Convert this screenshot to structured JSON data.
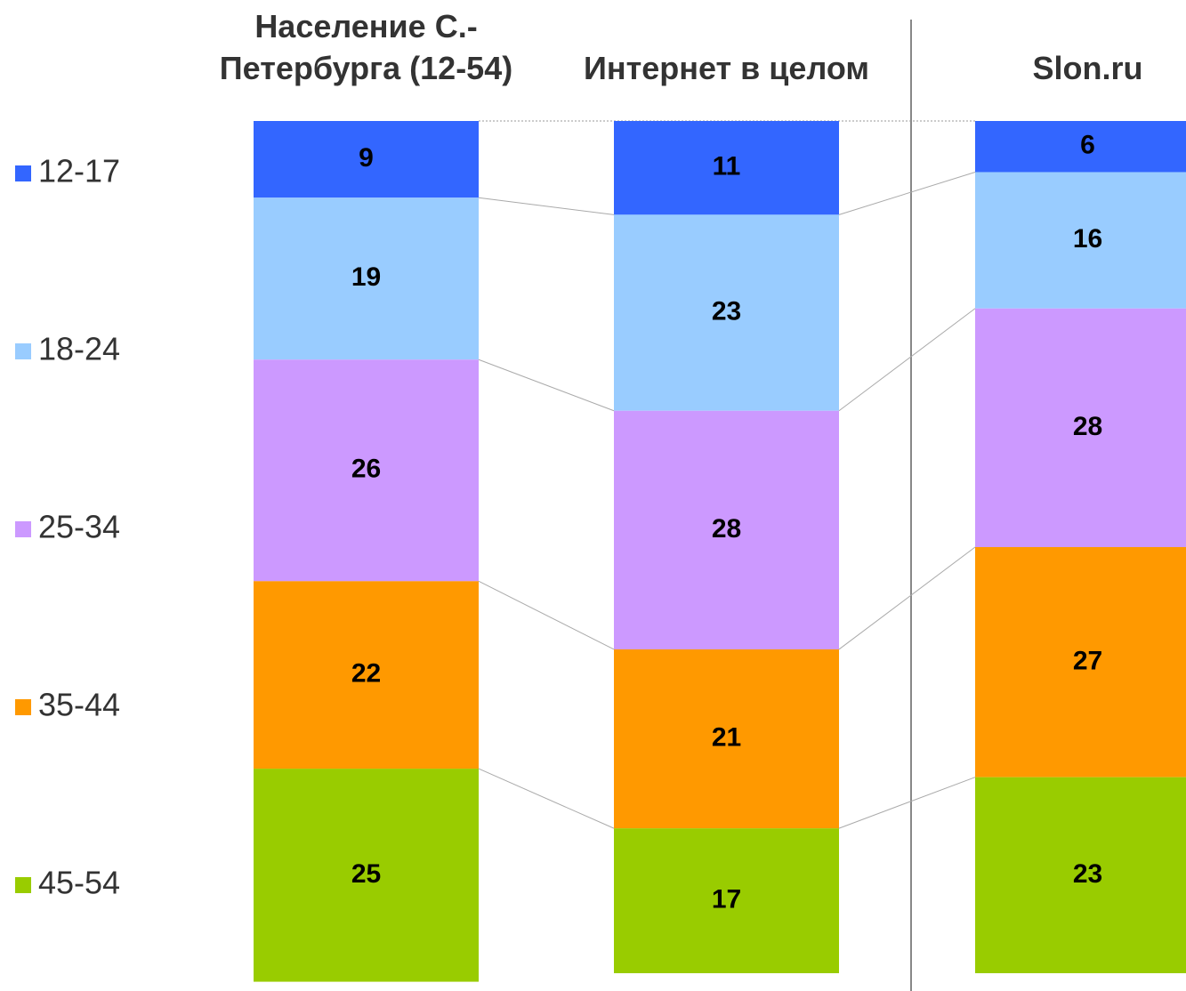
{
  "chart_data": {
    "type": "stacked_bar_100",
    "categories": [
      "Население С.-Петербурга (12-54)",
      "Интернет в целом",
      "Slon.ru"
    ],
    "series": [
      {
        "name": "12-17",
        "color": "#3366ff",
        "values": [
          9,
          11,
          6
        ]
      },
      {
        "name": "18-24",
        "color": "#99ccff",
        "values": [
          19,
          23,
          16
        ]
      },
      {
        "name": "25-34",
        "color": "#cc99ff",
        "values": [
          26,
          28,
          28
        ]
      },
      {
        "name": "35-44",
        "color": "#ff9900",
        "values": [
          22,
          21,
          27
        ]
      },
      {
        "name": "45-54",
        "color": "#99cc00",
        "values": [
          25,
          17,
          23
        ]
      }
    ],
    "ylim": [
      0,
      100
    ],
    "legend": "left"
  }
}
